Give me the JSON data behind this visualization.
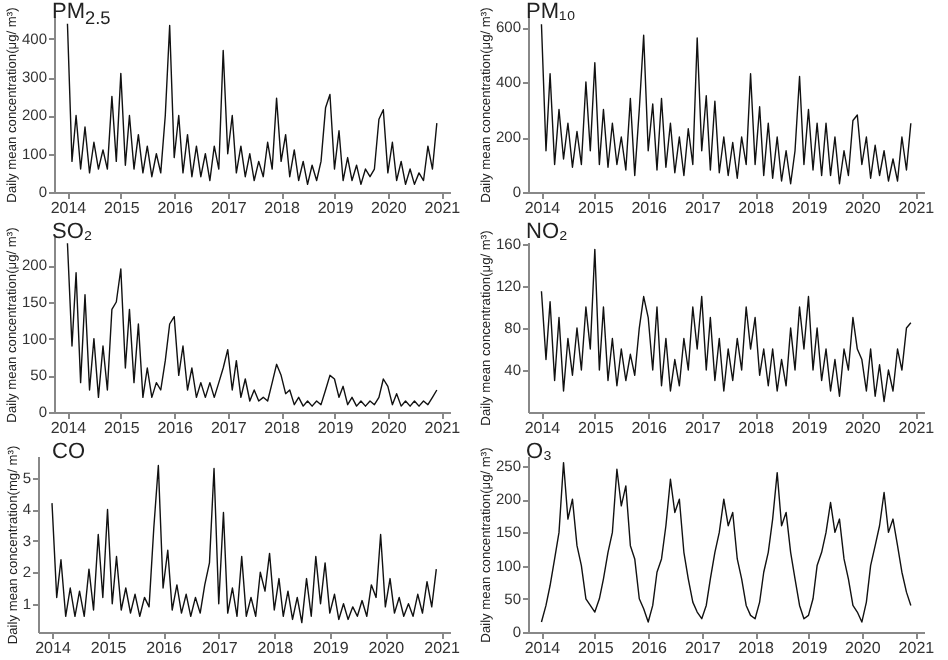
{
  "chart_data": [
    {
      "type": "line",
      "title": "PM$_{2.5}$",
      "ylabel": "Daily mean concentration(μg/ m³)",
      "color": "#111111",
      "ylim": [
        0,
        460
      ],
      "yticks": [
        0,
        100,
        200,
        300,
        400
      ],
      "xlim": [
        "2013-10-01",
        "2021-03-01"
      ],
      "xticks": [
        "2014",
        "2015",
        "2016",
        "2017",
        "2018",
        "2019",
        "2020",
        "2021"
      ],
      "grid": false,
      "x": [
        "2014-01",
        "2014-02",
        "2014-03",
        "2014-04",
        "2014-05",
        "2014-06",
        "2014-07",
        "2014-08",
        "2014-09",
        "2014-10",
        "2014-11",
        "2014-12",
        "2015-01",
        "2015-02",
        "2015-03",
        "2015-04",
        "2015-05",
        "2015-06",
        "2015-07",
        "2015-08",
        "2015-09",
        "2015-10",
        "2015-11",
        "2015-12",
        "2016-01",
        "2016-02",
        "2016-03",
        "2016-04",
        "2016-05",
        "2016-06",
        "2016-07",
        "2016-08",
        "2016-09",
        "2016-10",
        "2016-11",
        "2016-12",
        "2017-01",
        "2017-02",
        "2017-03",
        "2017-04",
        "2017-05",
        "2017-06",
        "2017-07",
        "2017-08",
        "2017-09",
        "2017-10",
        "2017-11",
        "2017-12",
        "2018-01",
        "2018-02",
        "2018-03",
        "2018-04",
        "2018-05",
        "2018-06",
        "2018-07",
        "2018-08",
        "2018-09",
        "2018-10",
        "2018-11",
        "2018-12",
        "2019-01",
        "2019-02",
        "2019-03",
        "2019-04",
        "2019-05",
        "2019-06",
        "2019-07",
        "2019-08",
        "2019-09",
        "2019-10",
        "2019-11",
        "2019-12",
        "2020-01",
        "2020-02",
        "2020-03",
        "2020-04",
        "2020-05",
        "2020-06",
        "2020-07",
        "2020-08",
        "2020-09",
        "2020-10",
        "2020-11",
        "2020-12"
      ],
      "values": [
        440,
        80,
        200,
        60,
        170,
        50,
        130,
        60,
        110,
        60,
        250,
        80,
        310,
        70,
        200,
        60,
        150,
        50,
        120,
        40,
        100,
        50,
        200,
        435,
        90,
        200,
        50,
        150,
        40,
        120,
        40,
        100,
        30,
        120,
        60,
        370,
        100,
        200,
        50,
        120,
        40,
        100,
        30,
        80,
        40,
        130,
        60,
        245,
        80,
        150,
        40,
        110,
        30,
        80,
        20,
        70,
        30,
        80,
        220,
        255,
        60,
        160,
        30,
        90,
        30,
        70,
        20,
        60,
        40,
        60,
        190,
        215,
        50,
        130,
        30,
        80,
        20,
        60,
        20,
        50,
        30,
        120,
        60,
        180
      ]
    },
    {
      "type": "line",
      "title": "PM₁₀",
      "ylabel": "Daily mean concentration(μg/ m³)",
      "color": "#111111",
      "ylim": [
        0,
        640
      ],
      "yticks": [
        0,
        200,
        400,
        600
      ],
      "xlim": [
        "2013-10-01",
        "2021-03-01"
      ],
      "xticks": [
        "2014",
        "2015",
        "2016",
        "2017",
        "2018",
        "2019",
        "2020",
        "2021"
      ],
      "grid": false,
      "x": [
        "2014-01",
        "2014-02",
        "2014-03",
        "2014-04",
        "2014-05",
        "2014-06",
        "2014-07",
        "2014-08",
        "2014-09",
        "2014-10",
        "2014-11",
        "2014-12",
        "2015-01",
        "2015-02",
        "2015-03",
        "2015-04",
        "2015-05",
        "2015-06",
        "2015-07",
        "2015-08",
        "2015-09",
        "2015-10",
        "2015-11",
        "2015-12",
        "2016-01",
        "2016-02",
        "2016-03",
        "2016-04",
        "2016-05",
        "2016-06",
        "2016-07",
        "2016-08",
        "2016-09",
        "2016-10",
        "2016-11",
        "2016-12",
        "2017-01",
        "2017-02",
        "2017-03",
        "2017-04",
        "2017-05",
        "2017-06",
        "2017-07",
        "2017-08",
        "2017-09",
        "2017-10",
        "2017-11",
        "2017-12",
        "2018-01",
        "2018-02",
        "2018-03",
        "2018-04",
        "2018-05",
        "2018-06",
        "2018-07",
        "2018-08",
        "2018-09",
        "2018-10",
        "2018-11",
        "2018-12",
        "2019-01",
        "2019-02",
        "2019-03",
        "2019-04",
        "2019-05",
        "2019-06",
        "2019-07",
        "2019-08",
        "2019-09",
        "2019-10",
        "2019-11",
        "2019-12",
        "2020-01",
        "2020-02",
        "2020-03",
        "2020-04",
        "2020-05",
        "2020-06",
        "2020-07",
        "2020-08",
        "2020-09",
        "2020-10",
        "2020-11",
        "2020-12"
      ],
      "values": [
        610,
        150,
        430,
        100,
        300,
        120,
        250,
        90,
        220,
        100,
        400,
        150,
        470,
        100,
        300,
        90,
        250,
        100,
        200,
        80,
        340,
        60,
        300,
        570,
        150,
        320,
        80,
        340,
        90,
        250,
        70,
        200,
        60,
        230,
        100,
        560,
        150,
        350,
        80,
        330,
        70,
        200,
        60,
        180,
        50,
        200,
        100,
        430,
        100,
        310,
        60,
        250,
        50,
        200,
        40,
        150,
        30,
        150,
        420,
        100,
        300,
        80,
        250,
        60,
        250,
        60,
        200,
        30,
        150,
        60,
        260,
        280,
        100,
        200,
        50,
        170,
        60,
        150,
        40,
        120,
        40,
        200,
        80,
        250
      ]
    },
    {
      "type": "line",
      "title": "SO₂",
      "ylabel": "Daily mean concentration(μg/ m³)",
      "color": "#111111",
      "ylim": [
        0,
        240
      ],
      "yticks": [
        0,
        50,
        100,
        150,
        200
      ],
      "xlim": [
        "2013-10-01",
        "2021-03-01"
      ],
      "xticks": [
        "2014",
        "2015",
        "2016",
        "2017",
        "2018",
        "2019",
        "2020",
        "2021"
      ],
      "grid": false,
      "x": [
        "2014-01",
        "2014-02",
        "2014-03",
        "2014-04",
        "2014-05",
        "2014-06",
        "2014-07",
        "2014-08",
        "2014-09",
        "2014-10",
        "2014-11",
        "2014-12",
        "2015-01",
        "2015-02",
        "2015-03",
        "2015-04",
        "2015-05",
        "2015-06",
        "2015-07",
        "2015-08",
        "2015-09",
        "2015-10",
        "2015-11",
        "2015-12",
        "2016-01",
        "2016-02",
        "2016-03",
        "2016-04",
        "2016-05",
        "2016-06",
        "2016-07",
        "2016-08",
        "2016-09",
        "2016-10",
        "2016-11",
        "2016-12",
        "2017-01",
        "2017-02",
        "2017-03",
        "2017-04",
        "2017-05",
        "2017-06",
        "2017-07",
        "2017-08",
        "2017-09",
        "2017-10",
        "2017-11",
        "2017-12",
        "2018-01",
        "2018-02",
        "2018-03",
        "2018-04",
        "2018-05",
        "2018-06",
        "2018-07",
        "2018-08",
        "2018-09",
        "2018-10",
        "2018-11",
        "2018-12",
        "2019-01",
        "2019-02",
        "2019-03",
        "2019-04",
        "2019-05",
        "2019-06",
        "2019-07",
        "2019-08",
        "2019-09",
        "2019-10",
        "2019-11",
        "2019-12",
        "2020-01",
        "2020-02",
        "2020-03",
        "2020-04",
        "2020-05",
        "2020-06",
        "2020-07",
        "2020-08",
        "2020-09",
        "2020-10",
        "2020-11",
        "2020-12"
      ],
      "values": [
        230,
        90,
        190,
        40,
        160,
        30,
        100,
        20,
        90,
        30,
        140,
        150,
        195,
        60,
        140,
        40,
        120,
        20,
        60,
        20,
        40,
        30,
        70,
        120,
        130,
        50,
        90,
        30,
        60,
        20,
        40,
        20,
        40,
        20,
        40,
        60,
        85,
        30,
        70,
        20,
        45,
        15,
        30,
        15,
        20,
        15,
        40,
        65,
        50,
        25,
        30,
        10,
        20,
        8,
        15,
        8,
        15,
        10,
        30,
        50,
        45,
        20,
        35,
        10,
        20,
        8,
        15,
        8,
        15,
        10,
        20,
        45,
        35,
        10,
        25,
        8,
        15,
        8,
        15,
        8,
        15,
        10,
        20,
        30
      ]
    },
    {
      "type": "line",
      "title": "NO₂",
      "ylabel": "Daily mean concentration(μg/ m³)",
      "color": "#111111",
      "ylim": [
        0,
        162
      ],
      "yticks": [
        40,
        80,
        120,
        160
      ],
      "xlim": [
        "2013-10-01",
        "2021-03-01"
      ],
      "xticks": [
        "2014",
        "2015",
        "2016",
        "2017",
        "2018",
        "2019",
        "2020",
        "2021"
      ],
      "grid": false,
      "x": [
        "2014-01",
        "2014-02",
        "2014-03",
        "2014-04",
        "2014-05",
        "2014-06",
        "2014-07",
        "2014-08",
        "2014-09",
        "2014-10",
        "2014-11",
        "2014-12",
        "2015-01",
        "2015-02",
        "2015-03",
        "2015-04",
        "2015-05",
        "2015-06",
        "2015-07",
        "2015-08",
        "2015-09",
        "2015-10",
        "2015-11",
        "2015-12",
        "2016-01",
        "2016-02",
        "2016-03",
        "2016-04",
        "2016-05",
        "2016-06",
        "2016-07",
        "2016-08",
        "2016-09",
        "2016-10",
        "2016-11",
        "2016-12",
        "2017-01",
        "2017-02",
        "2017-03",
        "2017-04",
        "2017-05",
        "2017-06",
        "2017-07",
        "2017-08",
        "2017-09",
        "2017-10",
        "2017-11",
        "2017-12",
        "2018-01",
        "2018-02",
        "2018-03",
        "2018-04",
        "2018-05",
        "2018-06",
        "2018-07",
        "2018-08",
        "2018-09",
        "2018-10",
        "2018-11",
        "2018-12",
        "2019-01",
        "2019-02",
        "2019-03",
        "2019-04",
        "2019-05",
        "2019-06",
        "2019-07",
        "2019-08",
        "2019-09",
        "2019-10",
        "2019-11",
        "2019-12",
        "2020-01",
        "2020-02",
        "2020-03",
        "2020-04",
        "2020-05",
        "2020-06",
        "2020-07",
        "2020-08",
        "2020-09",
        "2020-10",
        "2020-11",
        "2020-12"
      ],
      "values": [
        115,
        50,
        105,
        30,
        90,
        20,
        70,
        35,
        80,
        40,
        100,
        60,
        155,
        40,
        100,
        30,
        70,
        25,
        60,
        30,
        55,
        35,
        80,
        110,
        90,
        40,
        100,
        25,
        70,
        20,
        50,
        25,
        70,
        40,
        100,
        60,
        110,
        40,
        90,
        30,
        70,
        20,
        60,
        30,
        70,
        40,
        100,
        60,
        90,
        35,
        60,
        25,
        60,
        20,
        50,
        25,
        80,
        40,
        100,
        60,
        110,
        40,
        80,
        30,
        60,
        20,
        50,
        15,
        60,
        40,
        90,
        60,
        50,
        20,
        60,
        15,
        45,
        10,
        40,
        20,
        60,
        40,
        80,
        85
      ]
    },
    {
      "type": "line",
      "title": "CO",
      "ylabel": "Daily mean concentration(mg/ m³)",
      "color": "#111111",
      "ylim": [
        0.1,
        5.7
      ],
      "yticks": [
        1,
        2,
        3,
        4,
        5
      ],
      "xlim": [
        "2013-10-01",
        "2021-03-01"
      ],
      "xticks": [
        "2014",
        "2015",
        "2016",
        "2017",
        "2018",
        "2019",
        "2020",
        "2021"
      ],
      "grid": false,
      "x": [
        "2014-01",
        "2014-02",
        "2014-03",
        "2014-04",
        "2014-05",
        "2014-06",
        "2014-07",
        "2014-08",
        "2014-09",
        "2014-10",
        "2014-11",
        "2014-12",
        "2015-01",
        "2015-02",
        "2015-03",
        "2015-04",
        "2015-05",
        "2015-06",
        "2015-07",
        "2015-08",
        "2015-09",
        "2015-10",
        "2015-11",
        "2015-12",
        "2016-01",
        "2016-02",
        "2016-03",
        "2016-04",
        "2016-05",
        "2016-06",
        "2016-07",
        "2016-08",
        "2016-09",
        "2016-10",
        "2016-11",
        "2016-12",
        "2017-01",
        "2017-02",
        "2017-03",
        "2017-04",
        "2017-05",
        "2017-06",
        "2017-07",
        "2017-08",
        "2017-09",
        "2017-10",
        "2017-11",
        "2017-12",
        "2018-01",
        "2018-02",
        "2018-03",
        "2018-04",
        "2018-05",
        "2018-06",
        "2018-07",
        "2018-08",
        "2018-09",
        "2018-10",
        "2018-11",
        "2018-12",
        "2019-01",
        "2019-02",
        "2019-03",
        "2019-04",
        "2019-05",
        "2019-06",
        "2019-07",
        "2019-08",
        "2019-09",
        "2019-10",
        "2019-11",
        "2019-12",
        "2020-01",
        "2020-02",
        "2020-03",
        "2020-04",
        "2020-05",
        "2020-06",
        "2020-07",
        "2020-08",
        "2020-09",
        "2020-10",
        "2020-11",
        "2020-12"
      ],
      "values": [
        4.2,
        1.2,
        2.4,
        0.6,
        1.5,
        0.6,
        1.4,
        0.6,
        2.1,
        0.8,
        3.2,
        1.2,
        4.0,
        1.0,
        2.5,
        0.8,
        1.5,
        0.7,
        1.3,
        0.6,
        1.2,
        0.9,
        3.4,
        5.4,
        1.5,
        2.7,
        0.8,
        1.6,
        0.7,
        1.3,
        0.6,
        1.2,
        0.7,
        1.6,
        2.3,
        5.3,
        1.0,
        3.9,
        0.7,
        1.5,
        0.6,
        2.5,
        0.6,
        1.2,
        0.6,
        2.0,
        1.4,
        2.6,
        0.8,
        1.8,
        0.6,
        1.4,
        0.5,
        1.2,
        0.4,
        1.8,
        0.6,
        2.5,
        1.0,
        2.3,
        0.7,
        1.3,
        0.5,
        1.0,
        0.5,
        0.9,
        0.6,
        1.1,
        0.6,
        1.6,
        1.2,
        3.2,
        0.9,
        1.8,
        0.7,
        1.2,
        0.6,
        1.0,
        0.6,
        1.3,
        0.7,
        1.7,
        0.9,
        2.1
      ]
    },
    {
      "type": "line",
      "title": "O₃",
      "ylabel": "Daily mean concentration(μg/ m³)",
      "color": "#111111",
      "ylim": [
        0,
        265
      ],
      "yticks": [
        0,
        50,
        100,
        150,
        200,
        250
      ],
      "xlim": [
        "2013-10-01",
        "2021-03-01"
      ],
      "xticks": [
        "2014",
        "2015",
        "2016",
        "2017",
        "2018",
        "2019",
        "2020",
        "2021"
      ],
      "grid": false,
      "x": [
        "2014-01",
        "2014-02",
        "2014-03",
        "2014-04",
        "2014-05",
        "2014-06",
        "2014-07",
        "2014-08",
        "2014-09",
        "2014-10",
        "2014-11",
        "2014-12",
        "2015-01",
        "2015-02",
        "2015-03",
        "2015-04",
        "2015-05",
        "2015-06",
        "2015-07",
        "2015-08",
        "2015-09",
        "2015-10",
        "2015-11",
        "2015-12",
        "2016-01",
        "2016-02",
        "2016-03",
        "2016-04",
        "2016-05",
        "2016-06",
        "2016-07",
        "2016-08",
        "2016-09",
        "2016-10",
        "2016-11",
        "2016-12",
        "2017-01",
        "2017-02",
        "2017-03",
        "2017-04",
        "2017-05",
        "2017-06",
        "2017-07",
        "2017-08",
        "2017-09",
        "2017-10",
        "2017-11",
        "2017-12",
        "2018-01",
        "2018-02",
        "2018-03",
        "2018-04",
        "2018-05",
        "2018-06",
        "2018-07",
        "2018-08",
        "2018-09",
        "2018-10",
        "2018-11",
        "2018-12",
        "2019-01",
        "2019-02",
        "2019-03",
        "2019-04",
        "2019-05",
        "2019-06",
        "2019-07",
        "2019-08",
        "2019-09",
        "2019-10",
        "2019-11",
        "2019-12",
        "2020-01",
        "2020-02",
        "2020-03",
        "2020-04",
        "2020-05",
        "2020-06",
        "2020-07",
        "2020-08",
        "2020-09",
        "2020-10",
        "2020-11",
        "2020-12"
      ],
      "values": [
        15,
        40,
        70,
        110,
        150,
        255,
        170,
        200,
        130,
        100,
        50,
        40,
        30,
        50,
        80,
        120,
        150,
        245,
        190,
        220,
        130,
        110,
        50,
        35,
        15,
        40,
        90,
        110,
        160,
        230,
        180,
        200,
        120,
        80,
        45,
        30,
        20,
        40,
        80,
        120,
        150,
        200,
        160,
        180,
        110,
        80,
        40,
        25,
        20,
        45,
        90,
        120,
        170,
        240,
        160,
        180,
        120,
        80,
        40,
        20,
        25,
        50,
        100,
        120,
        150,
        195,
        150,
        170,
        110,
        80,
        40,
        30,
        15,
        45,
        100,
        130,
        160,
        210,
        150,
        170,
        130,
        90,
        60,
        40
      ]
    }
  ]
}
